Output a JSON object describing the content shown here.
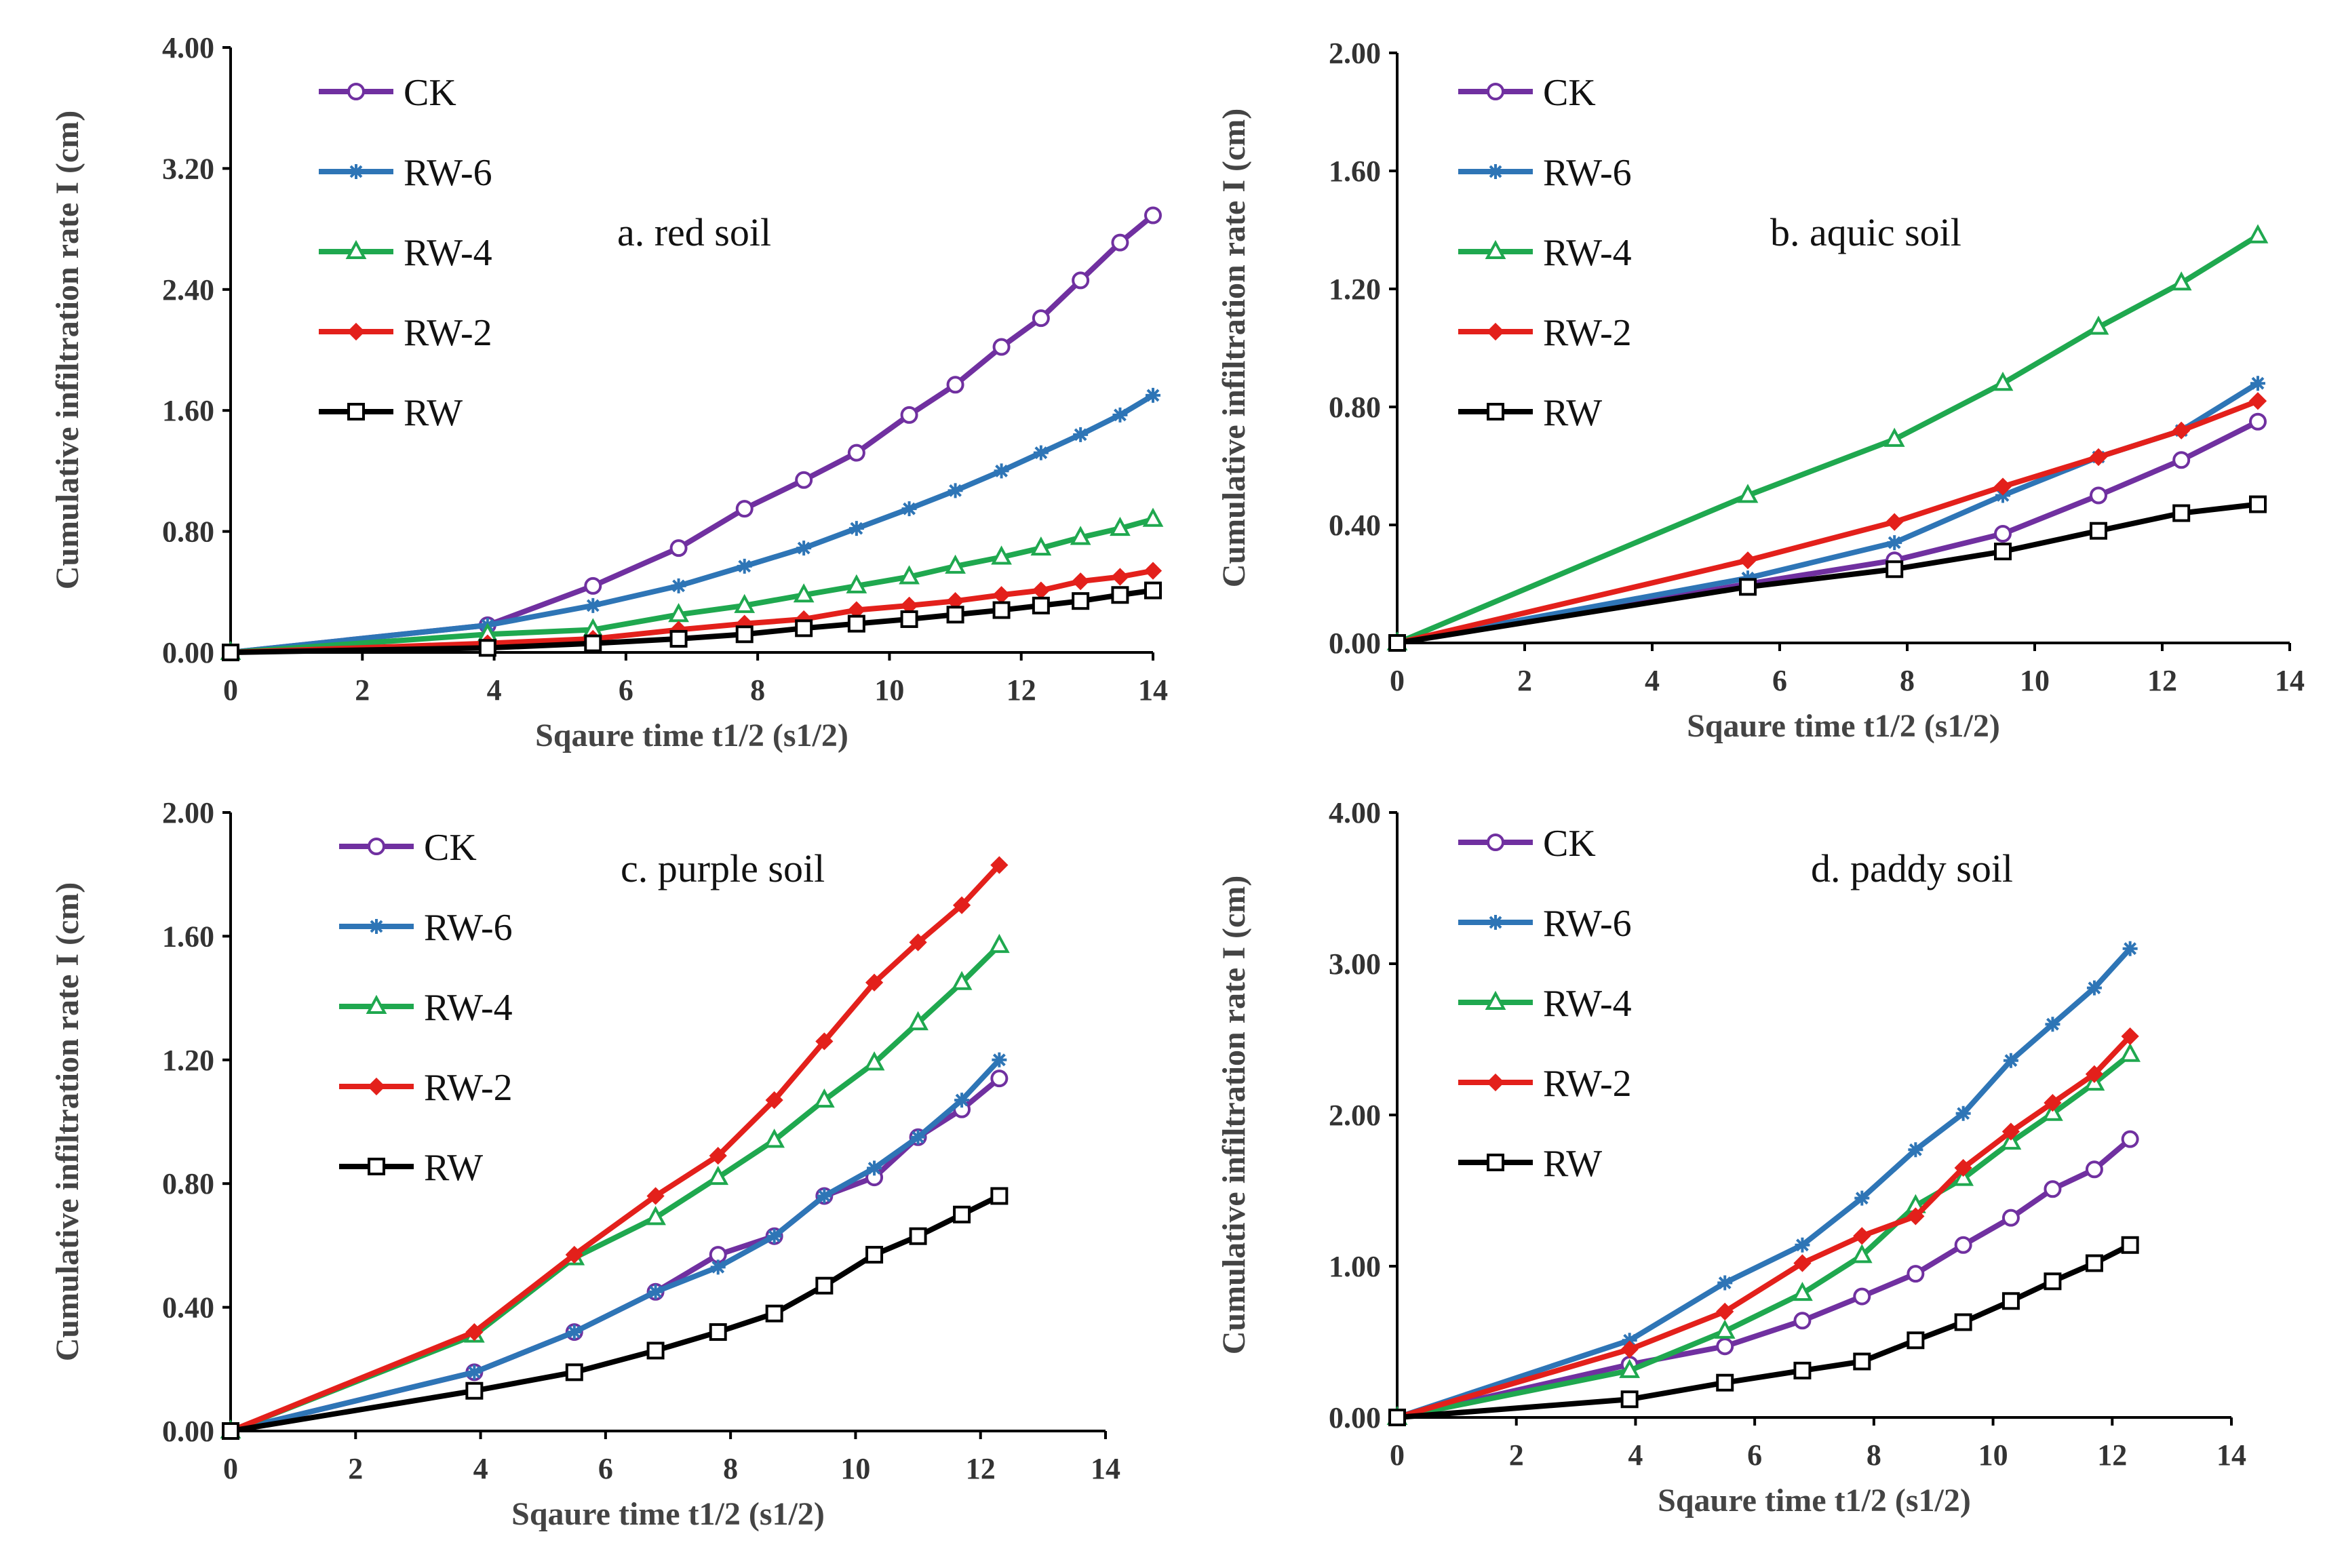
{
  "colors": {
    "CK": "#7030A0",
    "RW-6": "#2E75B6",
    "RW-4": "#1FA84F",
    "RW-2": "#E3201B",
    "RW": "#000000"
  },
  "chart_data": [
    {
      "type": "line",
      "title": "a. red soil",
      "xlabel": "Sqaure time t1/2 (s1/2)",
      "ylabel": "Cumulative infiltration rate I (cm)",
      "xlim": [
        0,
        14
      ],
      "ylim": [
        0,
        4
      ],
      "x_ticks": [
        "0",
        "2",
        "4",
        "6",
        "8",
        "10",
        "12",
        "14"
      ],
      "y_ticks": [
        "0.00",
        "0.80",
        "1.60",
        "2.40",
        "3.20",
        "4.00"
      ],
      "series": [
        {
          "name": "CK",
          "marker": "circle",
          "x": [
            0,
            3.9,
            5.5,
            6.8,
            7.8,
            8.7,
            9.5,
            10.3,
            11,
            11.7,
            12.3,
            12.9,
            13.5,
            14
          ],
          "y": [
            0,
            0.18,
            0.44,
            0.69,
            0.95,
            1.14,
            1.32,
            1.57,
            1.77,
            2.02,
            2.21,
            2.46,
            2.71,
            2.89
          ]
        },
        {
          "name": "RW-6",
          "marker": "star",
          "x": [
            0,
            3.9,
            5.5,
            6.8,
            7.8,
            8.7,
            9.5,
            10.3,
            11,
            11.7,
            12.3,
            12.9,
            13.5,
            14
          ],
          "y": [
            0,
            0.18,
            0.31,
            0.44,
            0.57,
            0.69,
            0.82,
            0.95,
            1.07,
            1.2,
            1.32,
            1.44,
            1.57,
            1.7
          ]
        },
        {
          "name": "RW-4",
          "marker": "triangle",
          "x": [
            0,
            3.9,
            5.5,
            6.8,
            7.8,
            8.7,
            9.5,
            10.3,
            11,
            11.7,
            12.3,
            12.9,
            13.5,
            14
          ],
          "y": [
            0,
            0.12,
            0.15,
            0.25,
            0.31,
            0.38,
            0.44,
            0.5,
            0.57,
            0.63,
            0.69,
            0.76,
            0.82,
            0.88
          ]
        },
        {
          "name": "RW-2",
          "marker": "diamond",
          "x": [
            0,
            3.9,
            5.5,
            6.8,
            7.8,
            8.7,
            9.5,
            10.3,
            11,
            11.7,
            12.3,
            12.9,
            13.5,
            14
          ],
          "y": [
            0,
            0.06,
            0.09,
            0.15,
            0.19,
            0.22,
            0.28,
            0.31,
            0.34,
            0.38,
            0.41,
            0.47,
            0.5,
            0.54
          ]
        },
        {
          "name": "RW",
          "marker": "square",
          "x": [
            0,
            3.9,
            5.5,
            6.8,
            7.8,
            8.7,
            9.5,
            10.3,
            11,
            11.7,
            12.3,
            12.9,
            13.5,
            14
          ],
          "y": [
            0,
            0.03,
            0.06,
            0.09,
            0.12,
            0.16,
            0.19,
            0.22,
            0.25,
            0.28,
            0.31,
            0.34,
            0.38,
            0.41
          ]
        }
      ]
    },
    {
      "type": "line",
      "title": "b. aquic soil",
      "xlabel": "Sqaure time t1/2 (s1/2)",
      "ylabel": "Cumulative infiltration rate I (cm)",
      "xlim": [
        0,
        14
      ],
      "ylim": [
        0,
        2
      ],
      "x_ticks": [
        "0",
        "2",
        "4",
        "6",
        "8",
        "10",
        "12",
        "14"
      ],
      "y_ticks": [
        "0.00",
        "0.40",
        "0.80",
        "1.20",
        "1.60",
        "2.00"
      ],
      "series": [
        {
          "name": "CK",
          "marker": "circle",
          "x": [
            0,
            5.5,
            7.8,
            9.5,
            11,
            12.3,
            13.5
          ],
          "y": [
            0,
            0.2,
            0.28,
            0.37,
            0.5,
            0.62,
            0.75
          ]
        },
        {
          "name": "RW-6",
          "marker": "star",
          "x": [
            0,
            5.5,
            7.8,
            9.5,
            11,
            12.3,
            13.5
          ],
          "y": [
            0,
            0.22,
            0.34,
            0.5,
            0.63,
            0.72,
            0.88
          ]
        },
        {
          "name": "RW-4",
          "marker": "triangle",
          "x": [
            0,
            5.5,
            7.8,
            9.5,
            11,
            12.3,
            13.5
          ],
          "y": [
            0,
            0.5,
            0.69,
            0.88,
            1.07,
            1.22,
            1.38
          ]
        },
        {
          "name": "RW-2",
          "marker": "diamond",
          "x": [
            0,
            5.5,
            7.8,
            9.5,
            11,
            12.3,
            13.5
          ],
          "y": [
            0,
            0.28,
            0.41,
            0.53,
            0.63,
            0.72,
            0.82
          ]
        },
        {
          "name": "RW",
          "marker": "square",
          "x": [
            0,
            5.5,
            7.8,
            9.5,
            11,
            12.3,
            13.5
          ],
          "y": [
            0,
            0.19,
            0.25,
            0.31,
            0.38,
            0.44,
            0.47
          ]
        }
      ]
    },
    {
      "type": "line",
      "title": "c. purple soil",
      "xlabel": "Sqaure time t1/2 (s1/2)",
      "ylabel": "Cumulative infiltration rate I (cm)",
      "xlim": [
        0,
        14
      ],
      "ylim": [
        0,
        2
      ],
      "x_ticks": [
        "0",
        "2",
        "4",
        "6",
        "8",
        "10",
        "12",
        "14"
      ],
      "y_ticks": [
        "0.00",
        "0.40",
        "0.80",
        "1.20",
        "1.60",
        "2.00"
      ],
      "series": [
        {
          "name": "CK",
          "marker": "circle",
          "x": [
            0,
            3.9,
            5.5,
            6.8,
            7.8,
            8.7,
            9.5,
            10.3,
            11,
            11.7,
            12.3
          ],
          "y": [
            0,
            0.19,
            0.32,
            0.45,
            0.57,
            0.63,
            0.76,
            0.82,
            0.95,
            1.04,
            1.14
          ]
        },
        {
          "name": "RW-6",
          "marker": "star",
          "x": [
            0,
            3.9,
            5.5,
            6.8,
            7.8,
            8.7,
            9.5,
            10.3,
            11,
            11.7,
            12.3
          ],
          "y": [
            0,
            0.19,
            0.32,
            0.45,
            0.53,
            0.63,
            0.76,
            0.85,
            0.95,
            1.07,
            1.2
          ]
        },
        {
          "name": "RW-4",
          "marker": "triangle",
          "x": [
            0,
            3.9,
            5.5,
            6.8,
            7.8,
            8.7,
            9.5,
            10.3,
            11,
            11.7,
            12.3
          ],
          "y": [
            0,
            0.31,
            0.56,
            0.69,
            0.82,
            0.94,
            1.07,
            1.19,
            1.32,
            1.45,
            1.57
          ]
        },
        {
          "name": "RW-2",
          "marker": "diamond",
          "x": [
            0,
            3.9,
            5.5,
            6.8,
            7.8,
            8.7,
            9.5,
            10.3,
            11,
            11.7,
            12.3
          ],
          "y": [
            0,
            0.32,
            0.57,
            0.76,
            0.89,
            1.07,
            1.26,
            1.45,
            1.58,
            1.7,
            1.83
          ]
        },
        {
          "name": "RW",
          "marker": "square",
          "x": [
            0,
            3.9,
            5.5,
            6.8,
            7.8,
            8.7,
            9.5,
            10.3,
            11,
            11.7,
            12.3
          ],
          "y": [
            0,
            0.13,
            0.19,
            0.26,
            0.32,
            0.38,
            0.47,
            0.57,
            0.63,
            0.7,
            0.76
          ]
        }
      ]
    },
    {
      "type": "line",
      "title": "d. paddy soil",
      "xlabel": "Sqaure time t1/2 (s1/2)",
      "ylabel": "Cumulative infiltration rate I (cm)",
      "xlim": [
        0,
        14
      ],
      "ylim": [
        0,
        4
      ],
      "x_ticks": [
        "0",
        "2",
        "4",
        "6",
        "8",
        "10",
        "12",
        "14"
      ],
      "y_ticks": [
        "0.00",
        "1.00",
        "2.00",
        "3.00",
        "4.00"
      ],
      "series": [
        {
          "name": "CK",
          "marker": "circle",
          "x": [
            0,
            3.9,
            5.5,
            6.8,
            7.8,
            8.7,
            9.5,
            10.3,
            11,
            11.7,
            12.3
          ],
          "y": [
            0,
            0.35,
            0.47,
            0.64,
            0.8,
            0.95,
            1.14,
            1.32,
            1.51,
            1.64,
            1.84
          ]
        },
        {
          "name": "RW-6",
          "marker": "star",
          "x": [
            0,
            3.9,
            5.5,
            6.8,
            7.8,
            8.7,
            9.5,
            10.3,
            11,
            11.7,
            12.3
          ],
          "y": [
            0,
            0.51,
            0.89,
            1.14,
            1.45,
            1.77,
            2.01,
            2.36,
            2.6,
            2.84,
            3.1
          ]
        },
        {
          "name": "RW-4",
          "marker": "triangle",
          "x": [
            0,
            3.9,
            5.5,
            6.8,
            7.8,
            8.7,
            9.5,
            10.3,
            11,
            11.7,
            12.3
          ],
          "y": [
            0,
            0.31,
            0.57,
            0.82,
            1.07,
            1.4,
            1.58,
            1.82,
            2.01,
            2.21,
            2.4
          ]
        },
        {
          "name": "RW-2",
          "marker": "diamond",
          "x": [
            0,
            3.9,
            5.5,
            6.8,
            7.8,
            8.7,
            9.5,
            10.3,
            11,
            11.7,
            12.3
          ],
          "y": [
            0,
            0.45,
            0.7,
            1.02,
            1.2,
            1.33,
            1.65,
            1.89,
            2.08,
            2.27,
            2.52
          ]
        },
        {
          "name": "RW",
          "marker": "square",
          "x": [
            0,
            3.9,
            5.5,
            6.8,
            7.8,
            8.7,
            9.5,
            10.3,
            11,
            11.7,
            12.3
          ],
          "y": [
            0,
            0.12,
            0.23,
            0.31,
            0.37,
            0.51,
            0.63,
            0.77,
            0.9,
            1.02,
            1.14
          ]
        }
      ]
    }
  ]
}
